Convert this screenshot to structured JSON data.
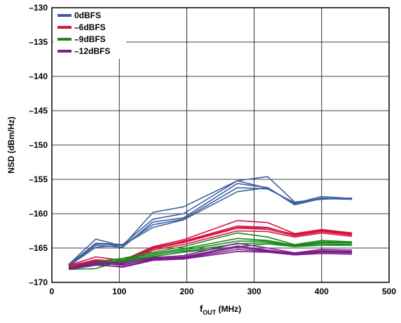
{
  "chart_data": {
    "type": "line",
    "title": "",
    "xlabel": {
      "main": "f",
      "sub": "OUT",
      "suffix": " (MHz)"
    },
    "ylabel": "NSD (dBm/Hz)",
    "xlim": [
      0,
      500
    ],
    "ylim": [
      -170,
      -130
    ],
    "xticks": [
      0,
      100,
      200,
      300,
      400,
      500
    ],
    "yticks": [
      -130,
      -135,
      -140,
      -145,
      -150,
      -155,
      -160,
      -165,
      -170
    ],
    "xtick_labels": [
      "0",
      "100",
      "200",
      "300",
      "400",
      "500"
    ],
    "ytick_labels": [
      "–130",
      "–135",
      "–140",
      "–145",
      "–150",
      "–155",
      "–160",
      "–165",
      "–170"
    ],
    "grid": true,
    "legend_position": "top-left",
    "x": [
      25,
      65,
      105,
      150,
      195,
      275,
      320,
      360,
      400,
      445
    ],
    "series": [
      {
        "name": "0dBFS",
        "color": "#3d5f9e",
        "traces": [
          [
            -167.5,
            -164.3,
            -164.5,
            -160.8,
            -160.0,
            -155.2,
            -156.3,
            -158.5,
            -157.5,
            -157.8
          ],
          [
            -167.4,
            -163.7,
            -164.7,
            -159.8,
            -159.0,
            -155.2,
            -154.6,
            -158.3,
            -157.9,
            -157.7
          ],
          [
            -167.6,
            -164.6,
            -164.9,
            -161.2,
            -160.6,
            -155.6,
            -156.2,
            -158.6,
            -157.7,
            -157.9
          ],
          [
            -167.4,
            -164.4,
            -164.6,
            -161.6,
            -160.8,
            -156.2,
            -156.4,
            -158.4,
            -157.8,
            -157.8
          ],
          [
            -167.6,
            -164.9,
            -164.6,
            -162.0,
            -160.9,
            -156.8,
            -156.2,
            -158.7,
            -157.8,
            -157.9
          ]
        ]
      },
      {
        "name": "–6dBFS",
        "color": "#d6153f",
        "traces": [
          [
            -167.6,
            -166.7,
            -167.0,
            -165.0,
            -164.0,
            -161.8,
            -162.0,
            -163.1,
            -162.5,
            -163.0
          ],
          [
            -167.5,
            -166.3,
            -166.8,
            -164.8,
            -163.8,
            -161.0,
            -161.3,
            -162.9,
            -162.3,
            -162.8
          ],
          [
            -167.7,
            -166.9,
            -167.1,
            -165.1,
            -164.2,
            -162.1,
            -162.3,
            -163.2,
            -162.6,
            -163.1
          ],
          [
            -167.8,
            -167.1,
            -167.3,
            -165.3,
            -164.5,
            -162.5,
            -162.6,
            -163.4,
            -162.8,
            -163.3
          ],
          [
            -167.6,
            -166.8,
            -167.0,
            -164.9,
            -164.1,
            -162.0,
            -162.1,
            -163.0,
            -162.4,
            -162.9
          ]
        ]
      },
      {
        "name": "–9dBFS",
        "color": "#1a8a1f",
        "traces": [
          [
            -168.0,
            -167.3,
            -166.9,
            -166.0,
            -165.3,
            -164.0,
            -164.0,
            -164.6,
            -164.2,
            -164.3
          ],
          [
            -167.8,
            -167.0,
            -166.5,
            -165.6,
            -164.8,
            -162.8,
            -163.4,
            -164.5,
            -163.9,
            -164.1
          ],
          [
            -168.1,
            -168.0,
            -166.8,
            -166.3,
            -165.5,
            -164.4,
            -164.2,
            -164.7,
            -164.4,
            -164.5
          ],
          [
            -167.9,
            -167.2,
            -166.7,
            -165.8,
            -165.1,
            -163.6,
            -163.9,
            -164.6,
            -164.1,
            -164.2
          ],
          [
            -168.1,
            -167.5,
            -167.1,
            -166.2,
            -165.6,
            -164.8,
            -164.4,
            -164.8,
            -164.6,
            -164.6
          ]
        ]
      },
      {
        "name": "–12dBFS",
        "color": "#7b1c8c",
        "traces": [
          [
            -168.0,
            -167.2,
            -167.5,
            -166.5,
            -166.3,
            -164.7,
            -165.3,
            -165.8,
            -165.4,
            -165.5
          ],
          [
            -167.9,
            -167.0,
            -167.2,
            -166.4,
            -166.1,
            -164.3,
            -165.0,
            -165.7,
            -165.2,
            -165.3
          ],
          [
            -168.1,
            -167.5,
            -167.7,
            -166.7,
            -166.5,
            -165.2,
            -165.5,
            -165.9,
            -165.6,
            -165.7
          ],
          [
            -168.0,
            -167.3,
            -167.4,
            -166.6,
            -166.4,
            -164.9,
            -165.4,
            -165.8,
            -165.5,
            -165.6
          ],
          [
            -168.1,
            -167.4,
            -167.8,
            -166.8,
            -166.6,
            -165.5,
            -165.6,
            -166.0,
            -165.8,
            -165.9
          ]
        ]
      }
    ]
  }
}
